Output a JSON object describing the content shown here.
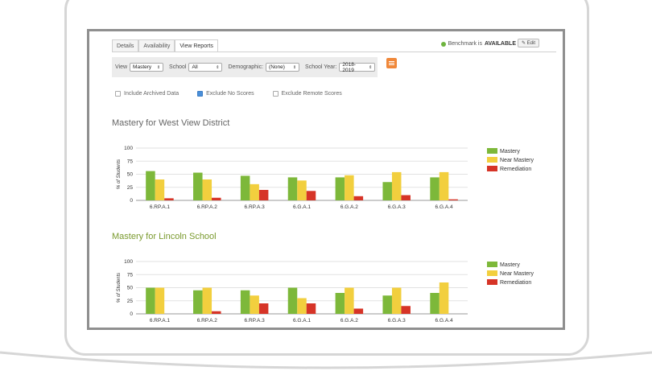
{
  "tabs": [
    "Details",
    "Availability",
    "View Reports"
  ],
  "active_tab": 2,
  "benchmark": {
    "prefix": "Benchmark is",
    "status": "AVAILABLE",
    "status_color": "#6eb43f"
  },
  "edit_label": "Edit",
  "filters": {
    "view_label": "View",
    "view_value": "Mastery",
    "school_label": "School",
    "school_value": "All",
    "demographic_label": "Demographic:",
    "demographic_value": "(None)",
    "year_label": "School Year:",
    "year_value": "2018-2019"
  },
  "checkboxes": [
    {
      "label": "Include Archived Data",
      "checked": false
    },
    {
      "label": "Exclude No Scores",
      "checked": true
    },
    {
      "label": "Exclude Remote Scores",
      "checked": false
    }
  ],
  "colors": {
    "mastery": "#7db83a",
    "near_mastery": "#f2cf3e",
    "remediation": "#d63427",
    "accent": "#f0883a"
  },
  "chart_data": [
    {
      "type": "bar",
      "title": "Mastery for West View District",
      "ylabel": "% of Students",
      "ylim": [
        0,
        100
      ],
      "yticks": [
        "100",
        "75",
        "50",
        "25",
        "0"
      ],
      "categories": [
        "6.RP.A.1",
        "6.RP.A.2",
        "6.RP.A.3",
        "6.G.A.1",
        "6.G.A.2",
        "6.G.A.3",
        "6.G.A.4"
      ],
      "series": [
        {
          "name": "Mastery",
          "values": [
            56,
            53,
            47,
            44,
            44,
            35,
            44
          ]
        },
        {
          "name": "Near Mastery",
          "values": [
            40,
            40,
            31,
            38,
            48,
            54,
            54
          ]
        },
        {
          "name": "Remediation",
          "values": [
            4,
            5,
            20,
            18,
            8,
            10,
            2
          ]
        }
      ]
    },
    {
      "type": "bar",
      "title": "Mastery for Lincoln School",
      "ylabel": "% of Students",
      "ylim": [
        0,
        100
      ],
      "yticks": [
        "100",
        "75",
        "50",
        "25",
        "0"
      ],
      "categories": [
        "6.RP.A.1",
        "6.RP.A.2",
        "6.RP.A.3",
        "6.G.A.1",
        "6.G.A.2",
        "6.G.A.3",
        "6.G.A.4"
      ],
      "series": [
        {
          "name": "Mastery",
          "values": [
            50,
            45,
            45,
            50,
            40,
            35,
            40
          ]
        },
        {
          "name": "Near Mastery",
          "values": [
            50,
            50,
            35,
            30,
            50,
            50,
            60
          ]
        },
        {
          "name": "Remediation",
          "values": [
            0,
            5,
            20,
            20,
            10,
            15,
            0
          ]
        }
      ]
    }
  ]
}
